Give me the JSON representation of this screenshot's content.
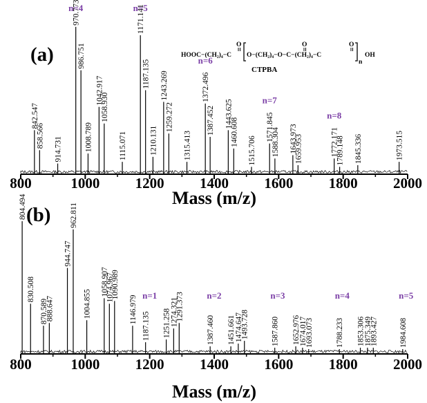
{
  "chart_data": [
    {
      "type": "mass-spectrum",
      "panel_label": "(a)",
      "xlabel": "Mass (m/z)",
      "xlim": [
        800,
        2000
      ],
      "xticks": [
        "800",
        "1000",
        "1200",
        "1400",
        "1600",
        "1800",
        "2000"
      ],
      "grid": false,
      "structure": {
        "name": "CTPBA",
        "left": "HOOC−(CH₂)₄−C",
        "mid": "O−(CH₂)₄−O−C−(CH₂)₄−C",
        "right": "OH",
        "carbonyl_o": "O",
        "subscript": "n"
      },
      "peaks": [
        {
          "x": 842.547,
          "label": "842.547",
          "rel": 0.26
        },
        {
          "x": 858.566,
          "label": "858.566",
          "rel": 0.14
        },
        {
          "x": 914.731,
          "label": "914.731",
          "rel": 0.06
        },
        {
          "x": 970.773,
          "label": "970.773",
          "rel": 0.88
        },
        {
          "x": 986.751,
          "label": "986.751",
          "rel": 0.62
        },
        {
          "x": 1008.789,
          "label": "1008.789",
          "rel": 0.12
        },
        {
          "x": 1042.917,
          "label": "1042.917",
          "rel": 0.4
        },
        {
          "x": 1058.93,
          "label": "1058.930",
          "rel": 0.3
        },
        {
          "x": 1115.071,
          "label": "1115.071",
          "rel": 0.07
        },
        {
          "x": 1171.141,
          "label": "1171.141",
          "rel": 0.83
        },
        {
          "x": 1187.135,
          "label": "1187.135",
          "rel": 0.5
        },
        {
          "x": 1210.131,
          "label": "1210.131",
          "rel": 0.1
        },
        {
          "x": 1243.269,
          "label": "1243.269",
          "rel": 0.43
        },
        {
          "x": 1259.272,
          "label": "1259.272",
          "rel": 0.24
        },
        {
          "x": 1315.413,
          "label": "1315.413",
          "rel": 0.07
        },
        {
          "x": 1372.496,
          "label": "1372.496",
          "rel": 0.42
        },
        {
          "x": 1387.452,
          "label": "1387.452",
          "rel": 0.22
        },
        {
          "x": 1443.625,
          "label": "1443.625",
          "rel": 0.26
        },
        {
          "x": 1460.608,
          "label": "1460.608",
          "rel": 0.15
        },
        {
          "x": 1515.706,
          "label": "1515.706",
          "rel": 0.04
        },
        {
          "x": 1571.845,
          "label": "1571.845",
          "rel": 0.18
        },
        {
          "x": 1588.304,
          "label": "1588.304",
          "rel": 0.09
        },
        {
          "x": 1643.973,
          "label": "1643.973",
          "rel": 0.11
        },
        {
          "x": 1659.953,
          "label": "1659.953",
          "rel": 0.05
        },
        {
          "x": 1772.171,
          "label": "1772.171",
          "rel": 0.09
        },
        {
          "x": 1789.148,
          "label": "1789.148",
          "rel": 0.04
        },
        {
          "x": 1845.336,
          "label": "1845.336",
          "rel": 0.05
        },
        {
          "x": 1973.515,
          "label": "1973.515",
          "rel": 0.07
        }
      ],
      "annotations": [
        {
          "text": "n=4",
          "x": 970.773
        },
        {
          "text": "n=5",
          "x": 1171.141
        },
        {
          "text": "n=6",
          "x": 1372.496
        },
        {
          "text": "n=7",
          "x": 1571.845
        },
        {
          "text": "n=8",
          "x": 1772.171
        }
      ],
      "annotation_color": "#7b3fa6"
    },
    {
      "type": "mass-spectrum",
      "panel_label": "(b)",
      "xlabel": "Mass (m/z)",
      "xlim": [
        800,
        2000
      ],
      "xticks": [
        "800",
        "1000",
        "1200",
        "1400",
        "1600",
        "1800",
        "2000"
      ],
      "grid": false,
      "peaks": [
        {
          "x": 804.494,
          "label": "804.494",
          "rel": 0.96
        },
        {
          "x": 830.508,
          "label": "830.508",
          "rel": 0.36
        },
        {
          "x": 870.589,
          "label": "870.589",
          "rel": 0.2
        },
        {
          "x": 888.647,
          "label": "888.647",
          "rel": 0.22
        },
        {
          "x": 944.747,
          "label": "944.747",
          "rel": 0.62
        },
        {
          "x": 962.811,
          "label": "962.811",
          "rel": 0.9
        },
        {
          "x": 1004.855,
          "label": "1004.855",
          "rel": 0.24
        },
        {
          "x": 1058.907,
          "label": "1058.907",
          "rel": 0.4
        },
        {
          "x": 1074.967,
          "label": "1074.967",
          "rel": 0.36
        },
        {
          "x": 1090.989,
          "label": "1090.989",
          "rel": 0.38
        },
        {
          "x": 1146.979,
          "label": "1146.979",
          "rel": 0.2
        },
        {
          "x": 1187.135,
          "label": "1187.135",
          "rel": 0.08
        },
        {
          "x": 1251.258,
          "label": "1251.258",
          "rel": 0.1
        },
        {
          "x": 1274.321,
          "label": "1274.321",
          "rel": 0.18
        },
        {
          "x": 1291.373,
          "label": "1291.373",
          "rel": 0.22
        },
        {
          "x": 1387.46,
          "label": "1387.460",
          "rel": 0.05
        },
        {
          "x": 1451.661,
          "label": "1451.661",
          "rel": 0.05
        },
        {
          "x": 1474.647,
          "label": "1474.647",
          "rel": 0.07
        },
        {
          "x": 1493.728,
          "label": "1493.728",
          "rel": 0.09
        },
        {
          "x": 1587.86,
          "label": "1587.860",
          "rel": 0.04
        },
        {
          "x": 1652.976,
          "label": "1652.976",
          "rel": 0.05
        },
        {
          "x": 1674.017,
          "label": "1674.017",
          "rel": 0.04
        },
        {
          "x": 1693.073,
          "label": "1693.073",
          "rel": 0.03
        },
        {
          "x": 1788.233,
          "label": "1788.233",
          "rel": 0.03
        },
        {
          "x": 1853.306,
          "label": "1853.306",
          "rel": 0.04
        },
        {
          "x": 1875.349,
          "label": "1875.349",
          "rel": 0.04
        },
        {
          "x": 1893.427,
          "label": "1893.427",
          "rel": 0.04
        },
        {
          "x": 1984.608,
          "label": "1984.608",
          "rel": 0.03
        }
      ],
      "annotations": [
        {
          "text": "n=1",
          "x": 1200
        },
        {
          "text": "n=2",
          "x": 1400
        },
        {
          "text": "n=3",
          "x": 1597
        },
        {
          "text": "n=4",
          "x": 1797
        },
        {
          "text": "n=5",
          "x": 1995
        }
      ],
      "annotation_color": "#7b3fa6"
    }
  ]
}
